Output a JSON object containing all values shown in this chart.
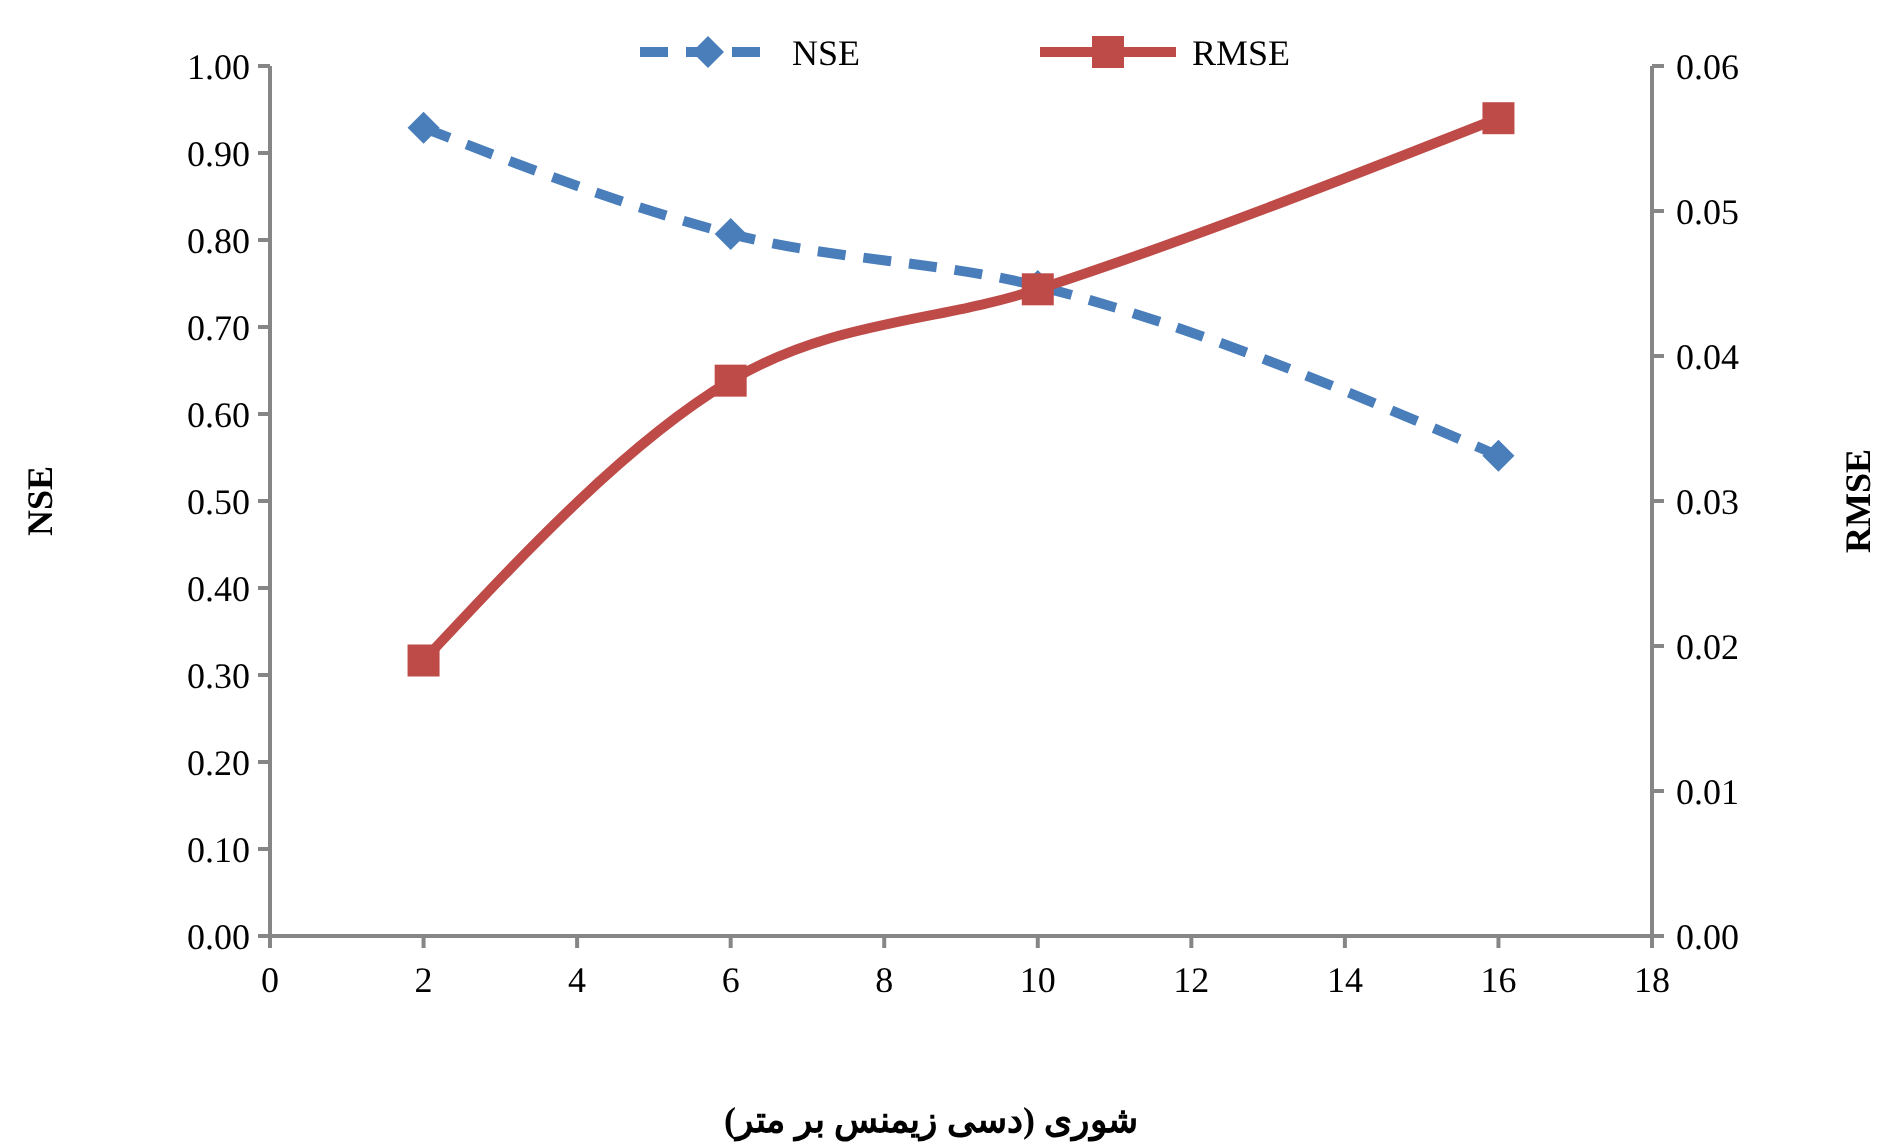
{
  "chart_data": {
    "type": "line",
    "xlabel": "شوری (دسی زیمنس بر متر)",
    "ylabel": "NSE",
    "y2label": "RMSE",
    "legend": "top",
    "x": [
      2,
      6,
      10,
      16
    ],
    "xlim": [
      0,
      18
    ],
    "xticks": [
      0,
      2,
      4,
      6,
      8,
      10,
      12,
      14,
      16,
      18
    ],
    "ylim": [
      0,
      1
    ],
    "yticks": [
      {
        "value": 0,
        "label": "0.00"
      },
      {
        "value": 0.1,
        "label": "0.10"
      },
      {
        "value": 0.2,
        "label": "0.20"
      },
      {
        "value": 0.3,
        "label": "0.30"
      },
      {
        "value": 0.4,
        "label": "0.40"
      },
      {
        "value": 0.5,
        "label": "0.50"
      },
      {
        "value": 0.6,
        "label": "0.60"
      },
      {
        "value": 0.7,
        "label": "0.70"
      },
      {
        "value": 0.8,
        "label": "0.80"
      },
      {
        "value": 0.9,
        "label": "0.90"
      },
      {
        "value": 1,
        "label": "1.00"
      }
    ],
    "y2lim": [
      0,
      0.06
    ],
    "y2ticks": [
      {
        "value": 0,
        "label": "0.00"
      },
      {
        "value": 0.01,
        "label": "0.01"
      },
      {
        "value": 0.02,
        "label": "0.02"
      },
      {
        "value": 0.03,
        "label": "0.03"
      },
      {
        "value": 0.04,
        "label": "0.04"
      },
      {
        "value": 0.05,
        "label": "0.05"
      },
      {
        "value": 0.06,
        "label": "0.06"
      }
    ],
    "series": [
      {
        "name": "NSE",
        "color": "#4a7ebb",
        "values": [
          0.929,
          0.807,
          0.747,
          0.552
        ],
        "marker": "diamond",
        "line_style": "dashed"
      },
      {
        "name": "RMSE",
        "color": "#be4b48",
        "values": [
          0.019,
          0.0383,
          0.0446,
          0.0564
        ],
        "marker": "square",
        "line_style": "solid",
        "axis": "y2"
      }
    ]
  }
}
